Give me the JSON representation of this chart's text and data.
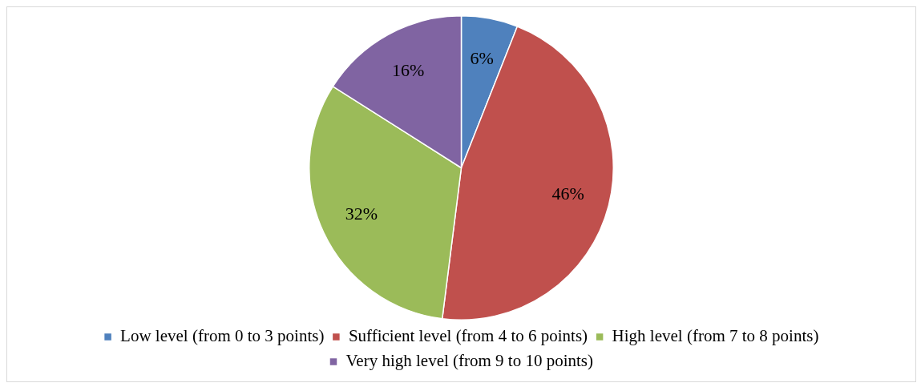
{
  "chart_data": {
    "type": "pie",
    "categories": [
      "Low level (from 0 to 3 points)",
      "Sufficient level (from 4 to 6 points)",
      "High level (from 7 to 8 points)",
      "Very high level (from 9 to 10 points)"
    ],
    "values": [
      6,
      46,
      32,
      16
    ],
    "colors": [
      "#4f81bd",
      "#c0504d",
      "#9bbb59",
      "#8064a2"
    ],
    "value_labels": [
      "6%",
      "46%",
      "32%",
      "16%"
    ],
    "legend": "bottom"
  }
}
